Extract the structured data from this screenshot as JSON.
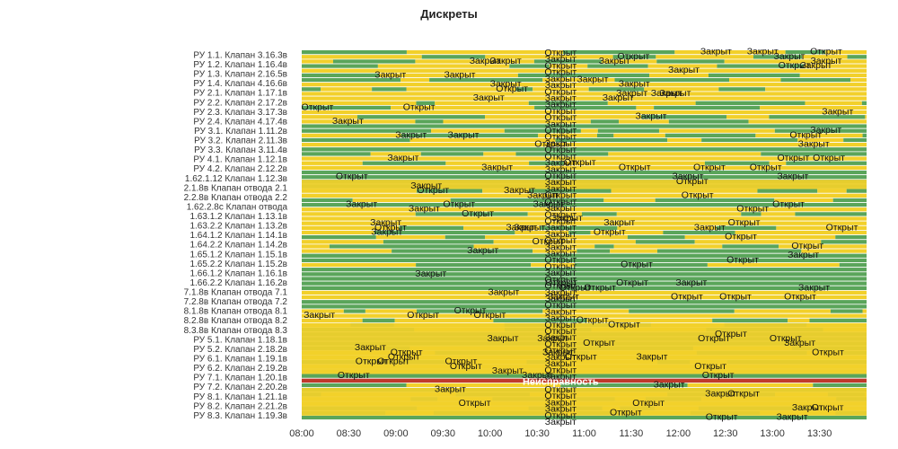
{
  "chart_data": {
    "type": "state-timeline",
    "title": "Дискреты",
    "x_range": [
      "08:00",
      "14:00"
    ],
    "x_ticks": [
      "08:00",
      "08:30",
      "09:00",
      "09:30",
      "10:00",
      "10:30",
      "11:00",
      "11:30",
      "12:00",
      "12:30",
      "13:00",
      "13:30"
    ],
    "states": [
      {
        "name": "Открыт",
        "color": "#5aa55a"
      },
      {
        "name": "Закрыт",
        "color": "#f2d02a"
      },
      {
        "name": "Неисправность",
        "color": "#c0392b"
      }
    ],
    "row_labels": [
      "РУ 1.1. Клапан 3.16.3в",
      "РУ 1.2. Клапан 1.16.4в",
      "РУ 1.3. Клапан 2.16.5в",
      "РУ 1.4. Клапан 4.16.6в",
      "РУ 2.1. Клапан 1.17.1в",
      "РУ 2.2. Клапан 2.17.2в",
      "РУ 2.3. Клапан 3.17.3в",
      "РУ 2.4. Клапан 4.17.4в",
      "РУ 3.1. Клапан 1.11.2в",
      "РУ 3.2. Клапан 2.11.3в",
      "РУ 3.3. Клапан 3.11.4в",
      "РУ 4.1. Клапан 1.12.1в",
      "РУ 4.2. Клапан 2.12.2в",
      "1.62.1.12 Клапан 1.12.3в",
      "2.1.8в Клапан отвода 2.1",
      "2.2.8в Клапан отвода 2.2",
      "1.62.2.8с Клапан отвода",
      "1.63.1.2 Клапан 1.13.1в",
      "1.63.2.2 Клапан 1.13.2в",
      "1.64.1.2 Клапан 1.14.1в",
      "1.64.2.2 Клапан 1.14.2в",
      "1.65.1.2 Клапан 1.15.1в",
      "1.65.2.2 Клапан 1.15.2в",
      "1.66.1.2 Клапан 1.16.1в",
      "1.66.2.2 Клапан 1.16.2в",
      "7.1.8в Клапан отвода 7.1",
      "7.2.8в Клапан отвода 7.2",
      "8.1.8в Клапан отвода 8.1",
      "8.2.8в Клапан отвода 8.2",
      "8.3.8в Клапан отвода 8.3",
      "РУ 5.1. Клапан 1.18.1в",
      "РУ 5.2. Клапан 2.18.2в",
      "РУ 6.1. Клапан 1.19.1в",
      "РУ 6.2. Клапан 2.19.2в",
      "РУ 7.1. Клапан 1.20.1в",
      "РУ 7.2. Клапан 2.20.2в",
      "РУ 8.1. Клапан 1.21.1в",
      "РУ 8.2. Клапан 2.21.2в",
      "РУ 8.3. Клапан 1.19.3в"
    ],
    "segment_text": [
      "Открыт",
      "Закрыт"
    ],
    "fault_text": "Неисправность"
  }
}
